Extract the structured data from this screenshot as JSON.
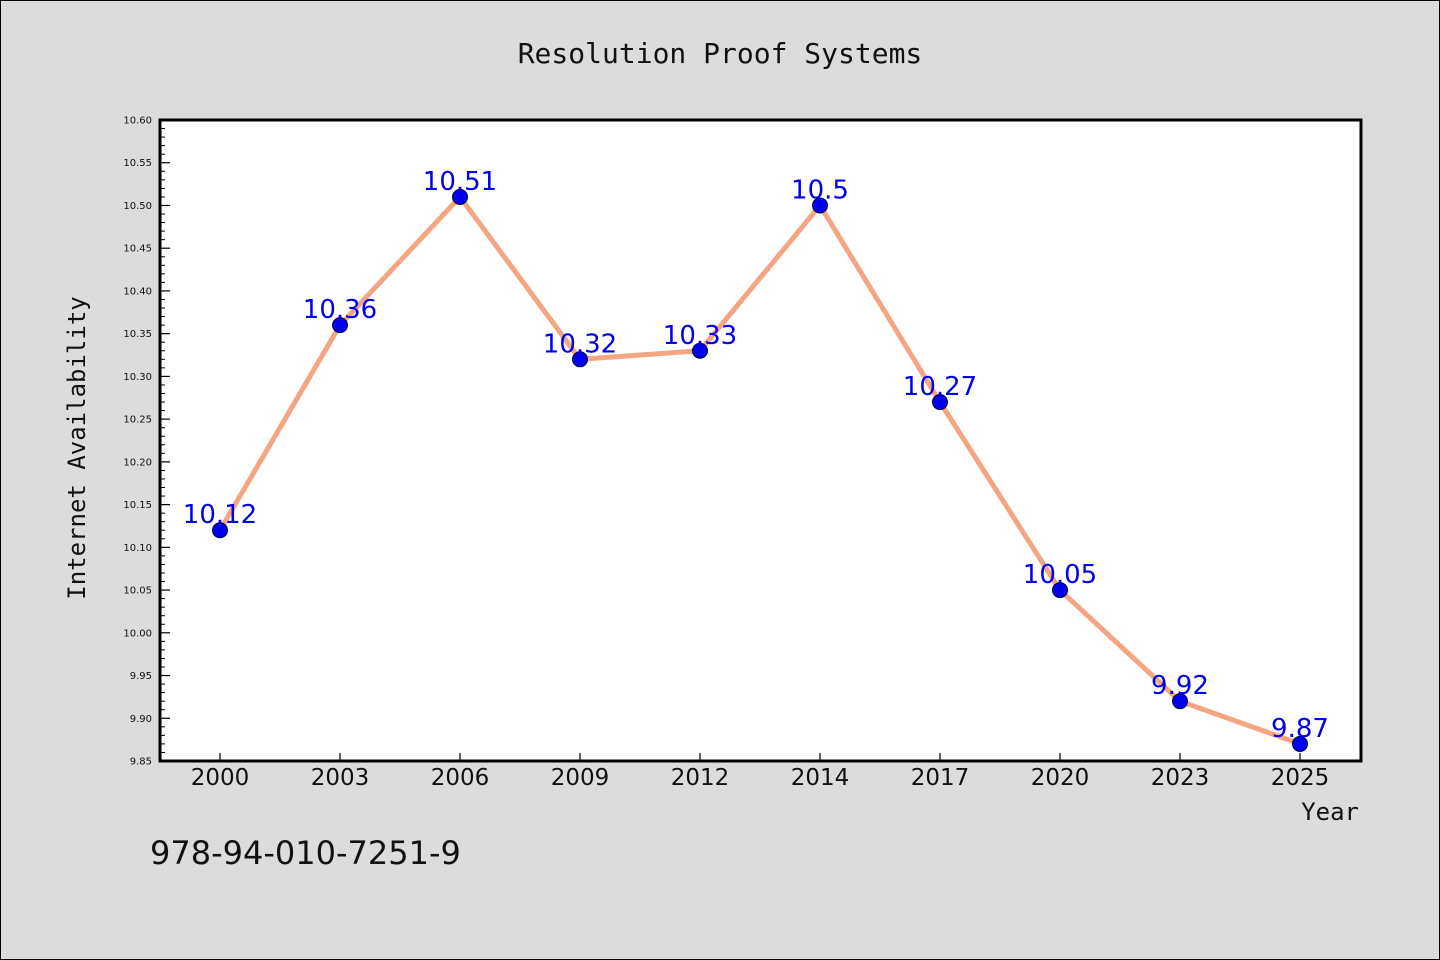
{
  "chart_data": {
    "type": "line",
    "title": "Resolution Proof Systems",
    "xlabel": "Year",
    "ylabel": "Internet Availability",
    "categories": [
      "2000",
      "2003",
      "2006",
      "2009",
      "2012",
      "2014",
      "2017",
      "2020",
      "2023",
      "2025"
    ],
    "values": [
      10.12,
      10.36,
      10.51,
      10.32,
      10.33,
      10.5,
      10.27,
      10.05,
      9.92,
      9.87
    ],
    "data_labels": [
      "10.12",
      "10.36",
      "10.51",
      "10.32",
      "10.33",
      "10.5",
      "10.27",
      "10.05",
      "9.92",
      "9.87"
    ],
    "ylim": [
      9.85,
      10.6
    ],
    "yticks": [
      "9.85",
      "9.90",
      "9.95",
      "10.00",
      "10.05",
      "10.10",
      "10.15",
      "10.20",
      "10.25",
      "10.30",
      "10.35",
      "10.40",
      "10.45",
      "10.50",
      "10.55",
      "10.60"
    ],
    "grid": false,
    "legend": "none",
    "colors": {
      "line": "#f4a582",
      "marker": "#0000ee",
      "label": "#0000ee",
      "background": "#dcdcdc",
      "plot_background": "#ffffff"
    }
  },
  "footer": {
    "isbn": "978-94-010-7251-9"
  }
}
